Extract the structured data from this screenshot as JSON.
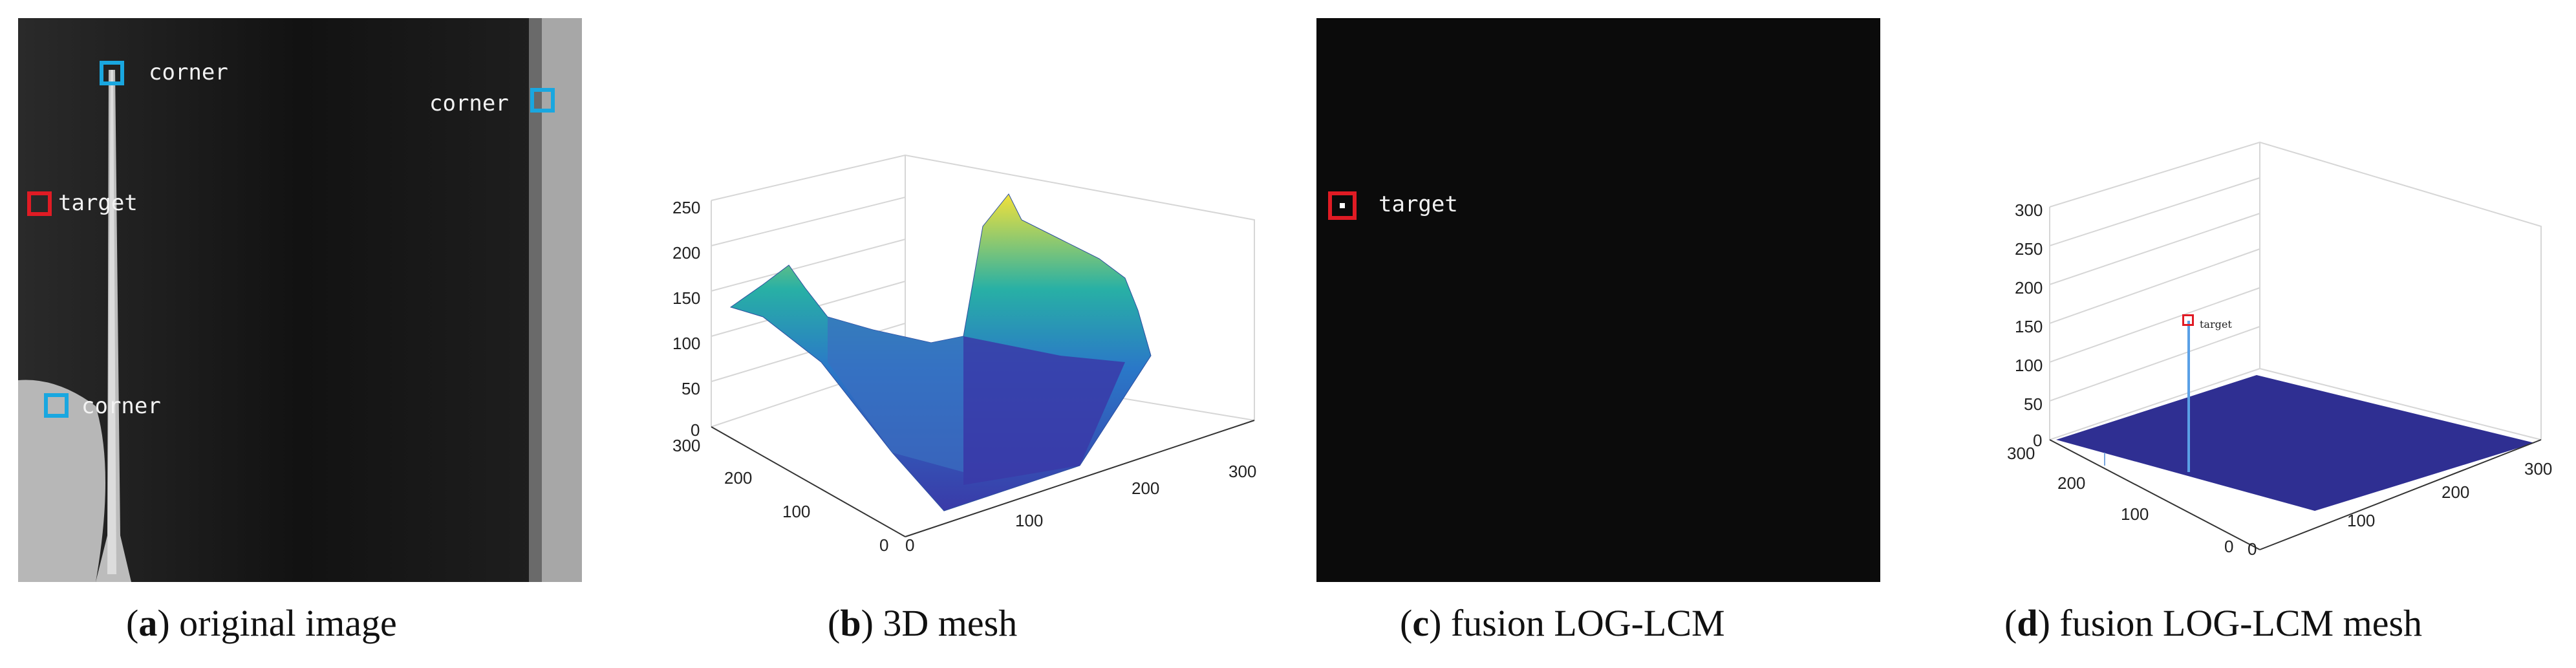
{
  "panels": {
    "a": {
      "caption_letter": "a",
      "caption_text": "original image",
      "annotations": [
        "corner",
        "corner",
        "target",
        "corner"
      ]
    },
    "b": {
      "caption_letter": "b",
      "caption_text": "3D mesh",
      "z_ticks": [
        "250",
        "200",
        "150",
        "100",
        "50",
        "0"
      ],
      "y_ticks": [
        "300",
        "200",
        "100",
        "0"
      ],
      "x_ticks": [
        "100",
        "200",
        "300"
      ],
      "x_ticks_zero": "0"
    },
    "c": {
      "caption_letter": "c",
      "caption_text": "fusion LOG-LCM",
      "annotations": [
        "target"
      ]
    },
    "d": {
      "caption_letter": "d",
      "caption_text": "fusion LOG-LCM mesh",
      "z_ticks": [
        "300",
        "250",
        "200",
        "150",
        "100",
        "50",
        "0"
      ],
      "y_ticks": [
        "300",
        "200",
        "100",
        "0"
      ],
      "x_ticks": [
        "100",
        "200",
        "300"
      ],
      "x_ticks_zero": "0",
      "annotation": "target"
    }
  },
  "colors": {
    "corner_box": "#19a7e0",
    "target_box": "#e01b24",
    "surface_high": "#f2e13a",
    "surface_mid": "#28b0a5",
    "surface_low": "#3a3aa8",
    "flat_plane": "#2f2f92"
  }
}
